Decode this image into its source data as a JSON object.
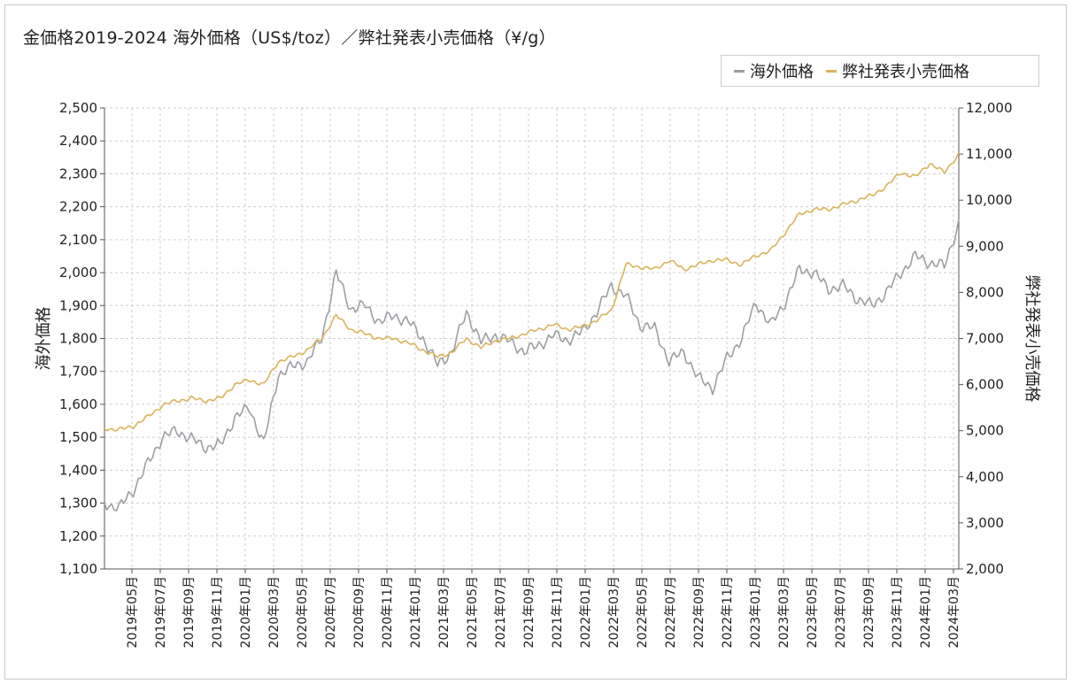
{
  "title": "金価格2019-2024 海外価格（US$/toz）／弊社発表小売価格（¥/g）",
  "colors": {
    "overseas": "#9e9ea4",
    "retail": "#d9b45c",
    "grid": "#cfcfcf",
    "axis": "#555555"
  },
  "chart_data": {
    "type": "line",
    "title": "金価格2019-2024 海外価格（US$/toz）／弊社発表小売価格（¥/g）",
    "xlabel": "",
    "ylabel": "海外価格",
    "y2label": "弊社発表小売価格",
    "ylim": [
      1100,
      2500
    ],
    "y2lim": [
      2000,
      12000
    ],
    "grid": true,
    "legend": "top-right",
    "yticks": [
      "1,100",
      "1,200",
      "1,300",
      "1,400",
      "1,500",
      "1,600",
      "1,700",
      "1,800",
      "1,900",
      "2,000",
      "2,100",
      "2,200",
      "2,300",
      "2,400",
      "2,500"
    ],
    "y2ticks": [
      "2,000",
      "3,000",
      "4,000",
      "5,000",
      "6,000",
      "7,000",
      "8,000",
      "9,000",
      "10,000",
      "11,000",
      "12,000"
    ],
    "xticks": [
      "2019年05月",
      "2019年07月",
      "2019年09月",
      "2019年11月",
      "2020年01月",
      "2020年03月",
      "2020年05月",
      "2020年07月",
      "2020年09月",
      "2020年11月",
      "2021年01月",
      "2021年03月",
      "2021年05月",
      "2021年07月",
      "2021年09月",
      "2021年11月",
      "2022年01月",
      "2022年03月",
      "2022年05月",
      "2022年07月",
      "2022年09月",
      "2022年11月",
      "2023年01月",
      "2023年03月",
      "2023年05月",
      "2023年07月",
      "2023年09月",
      "2023年11月",
      "2024年01月",
      "2024年03月"
    ],
    "x": [
      "2019-04",
      "2019-05",
      "2019-06",
      "2019-07",
      "2019-08",
      "2019-09",
      "2019-10",
      "2019-11",
      "2019-12",
      "2020-01",
      "2020-02",
      "2020-03",
      "2020-04",
      "2020-05",
      "2020-06",
      "2020-07",
      "2020-08",
      "2020-09",
      "2020-10",
      "2020-11",
      "2020-12",
      "2021-01",
      "2021-02",
      "2021-03",
      "2021-04",
      "2021-05",
      "2021-06",
      "2021-07",
      "2021-08",
      "2021-09",
      "2021-10",
      "2021-11",
      "2021-12",
      "2022-01",
      "2022-02",
      "2022-03",
      "2022-04",
      "2022-05",
      "2022-06",
      "2022-07",
      "2022-08",
      "2022-09",
      "2022-10",
      "2022-11",
      "2022-12",
      "2023-01",
      "2023-02",
      "2023-03",
      "2023-04",
      "2023-05",
      "2023-06",
      "2023-07",
      "2023-08",
      "2023-09",
      "2023-10",
      "2023-11",
      "2023-12",
      "2024-01",
      "2024-02",
      "2024-03"
    ],
    "series": [
      {
        "name": "海外価格",
        "axis": "left",
        "values": [
          1300,
          1285,
          1340,
          1420,
          1500,
          1520,
          1495,
          1470,
          1475,
          1560,
          1590,
          1480,
          1690,
          1715,
          1730,
          1800,
          2000,
          1890,
          1900,
          1850,
          1870,
          1850,
          1800,
          1720,
          1760,
          1880,
          1790,
          1810,
          1790,
          1760,
          1780,
          1810,
          1795,
          1820,
          1880,
          1960,
          1930,
          1840,
          1830,
          1730,
          1760,
          1680,
          1650,
          1740,
          1800,
          1910,
          1840,
          1910,
          2010,
          2000,
          1950,
          1960,
          1920,
          1900,
          1940,
          2000,
          2050,
          2030,
          2020,
          2150
        ]
      },
      {
        "name": "弊社発表小売価格",
        "axis": "right",
        "values": [
          5050,
          5020,
          5100,
          5300,
          5550,
          5650,
          5700,
          5650,
          5700,
          6000,
          6100,
          6000,
          6500,
          6600,
          6750,
          7000,
          7500,
          7200,
          7100,
          7000,
          7000,
          6900,
          6750,
          6600,
          6700,
          7000,
          6800,
          6950,
          7000,
          7100,
          7200,
          7300,
          7200,
          7250,
          7400,
          7600,
          8600,
          8550,
          8500,
          8700,
          8500,
          8600,
          8700,
          8700,
          8600,
          8800,
          8900,
          9300,
          9700,
          9800,
          9800,
          9900,
          10000,
          10100,
          10300,
          10600,
          10500,
          10800,
          10600,
          11000
        ]
      }
    ]
  }
}
